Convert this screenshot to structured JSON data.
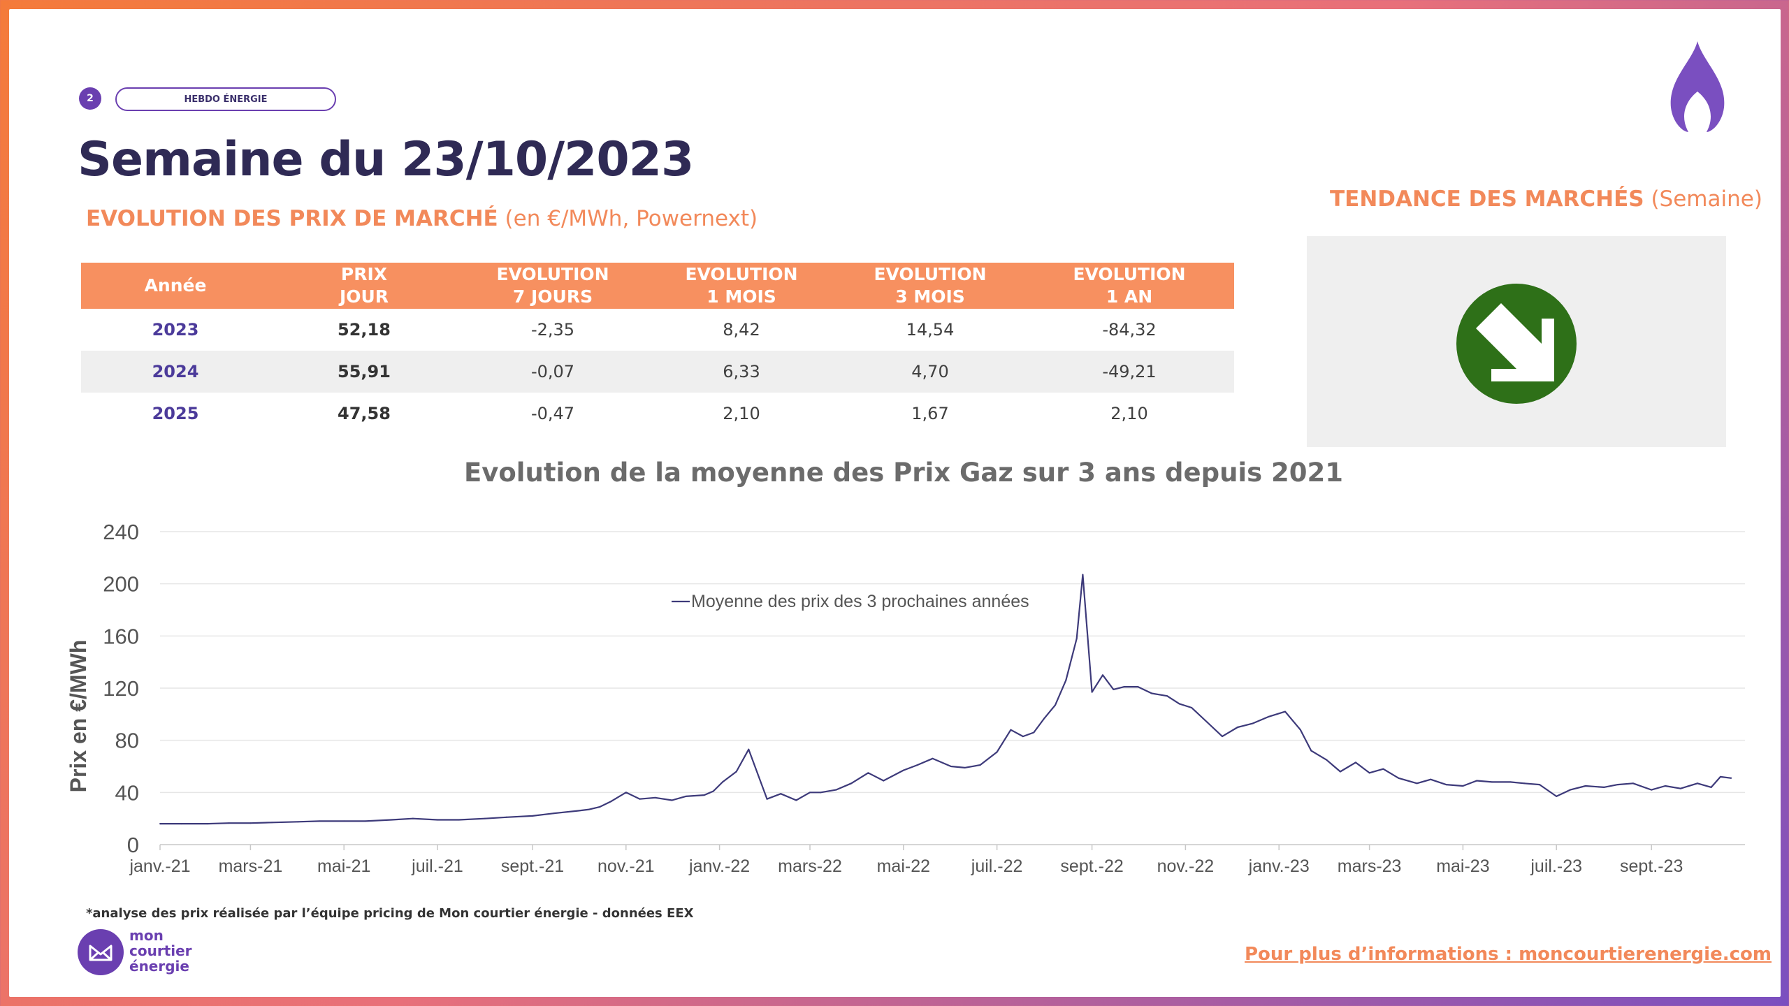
{
  "header": {
    "page_number": "2",
    "pill_label": "HEBDO ÉNERGIE",
    "title": "Semaine du 23/10/2023"
  },
  "section": {
    "title_bold": "EVOLUTION DES PRIX DE MARCHÉ",
    "title_rest": " (en €/MWh, Powernext)"
  },
  "trend": {
    "title_bold": "TENDANCE DES MARCHÉS",
    "title_rest": " (Semaine)",
    "direction": "down",
    "color": "#2e7018"
  },
  "table": {
    "headers": [
      [
        "Année"
      ],
      [
        "PRIX",
        "JOUR"
      ],
      [
        "EVOLUTION",
        "7 JOURS"
      ],
      [
        "EVOLUTION",
        "1 MOIS"
      ],
      [
        "EVOLUTION",
        "3 MOIS"
      ],
      [
        "EVOLUTION",
        "1 AN"
      ]
    ],
    "rows": [
      [
        "2023",
        "52,18",
        "-2,35",
        "8,42",
        "14,54",
        "-84,32"
      ],
      [
        "2024",
        "55,91",
        "-0,07",
        "6,33",
        "4,70",
        "-49,21"
      ],
      [
        "2025",
        "47,58",
        "-0,47",
        "2,10",
        "1,67",
        "2,10"
      ]
    ]
  },
  "chart_data": {
    "type": "line",
    "title": "Evolution de la moyenne des Prix Gaz sur 3 ans depuis 2021",
    "ylabel": "Prix en €/MWh",
    "xlabel": "",
    "ylim": [
      0,
      240
    ],
    "yticks": [
      0,
      40,
      80,
      120,
      160,
      200,
      240
    ],
    "xticks": [
      "janv.-21",
      "mars-21",
      "mai-21",
      "juil.-21",
      "sept.-21",
      "nov.-21",
      "janv.-22",
      "mars-22",
      "mai-22",
      "juil.-22",
      "sept.-22",
      "nov.-22",
      "janv.-23",
      "mars-23",
      "mai-23",
      "juil.-23",
      "sept.-23"
    ],
    "grid": true,
    "legend_position": "top-center",
    "color": "#3d3a7a",
    "series": [
      {
        "name": "Moyenne des prix des 3 prochaines années",
        "x": [
          "2021-01-01",
          "2021-01-15",
          "2021-02-01",
          "2021-02-15",
          "2021-03-01",
          "2021-03-15",
          "2021-04-01",
          "2021-04-15",
          "2021-05-01",
          "2021-05-15",
          "2021-06-01",
          "2021-06-15",
          "2021-07-01",
          "2021-07-15",
          "2021-08-01",
          "2021-08-15",
          "2021-09-01",
          "2021-09-15",
          "2021-10-01",
          "2021-10-08",
          "2021-10-15",
          "2021-10-22",
          "2021-11-01",
          "2021-11-10",
          "2021-11-20",
          "2021-12-01",
          "2021-12-10",
          "2021-12-22",
          "2021-12-28",
          "2022-01-03",
          "2022-01-12",
          "2022-01-20",
          "2022-02-01",
          "2022-02-10",
          "2022-02-20",
          "2022-03-01",
          "2022-03-08",
          "2022-03-18",
          "2022-03-28",
          "2022-04-08",
          "2022-04-18",
          "2022-05-01",
          "2022-05-10",
          "2022-05-20",
          "2022-06-01",
          "2022-06-10",
          "2022-06-20",
          "2022-07-01",
          "2022-07-10",
          "2022-07-18",
          "2022-07-25",
          "2022-08-01",
          "2022-08-08",
          "2022-08-15",
          "2022-08-22",
          "2022-08-26",
          "2022-09-01",
          "2022-09-08",
          "2022-09-15",
          "2022-09-22",
          "2022-10-01",
          "2022-10-10",
          "2022-10-20",
          "2022-10-28",
          "2022-11-05",
          "2022-11-15",
          "2022-11-25",
          "2022-12-05",
          "2022-12-15",
          "2022-12-25",
          "2023-01-05",
          "2023-01-15",
          "2023-01-22",
          "2023-02-01",
          "2023-02-10",
          "2023-02-20",
          "2023-03-01",
          "2023-03-10",
          "2023-03-20",
          "2023-04-01",
          "2023-04-10",
          "2023-04-20",
          "2023-05-01",
          "2023-05-10",
          "2023-05-20",
          "2023-06-01",
          "2023-06-10",
          "2023-06-20",
          "2023-07-01",
          "2023-07-10",
          "2023-07-20",
          "2023-08-01",
          "2023-08-10",
          "2023-08-20",
          "2023-09-01",
          "2023-09-10",
          "2023-09-20",
          "2023-10-01",
          "2023-10-10",
          "2023-10-16",
          "2023-10-23"
        ],
        "values": [
          16,
          16,
          16,
          16.5,
          16.5,
          17,
          17.5,
          18,
          18,
          18,
          19,
          20,
          19,
          19,
          20,
          21,
          22,
          24,
          26,
          27,
          29,
          33,
          40,
          35,
          36,
          34,
          37,
          38,
          41,
          48,
          56,
          73,
          35,
          39,
          34,
          40,
          40,
          42,
          47,
          55,
          49,
          57,
          61,
          66,
          60,
          59,
          61,
          71,
          88,
          83,
          86,
          97,
          107,
          126,
          158,
          207,
          117,
          130,
          119,
          121,
          121,
          116,
          114,
          108,
          105,
          94,
          83,
          90,
          93,
          98,
          102,
          88,
          72,
          65,
          56,
          63,
          55,
          58,
          51,
          47,
          50,
          46,
          45,
          49,
          48,
          48,
          47,
          46,
          37,
          42,
          45,
          44,
          46,
          47,
          42,
          45,
          43,
          47,
          44,
          52,
          51
        ]
      }
    ]
  },
  "footnote": "*analyse des prix réalisée par l’équipe pricing de Mon courtier énergie -   données EEX",
  "logo_text": "mon\ncourtier\nénergie",
  "more_info": "Pour plus d’informations : moncourtierenergie.com",
  "colors": {
    "accent": "#f79060",
    "brand_purple": "#6a3fb0",
    "title_dark": "#2f2a55"
  }
}
